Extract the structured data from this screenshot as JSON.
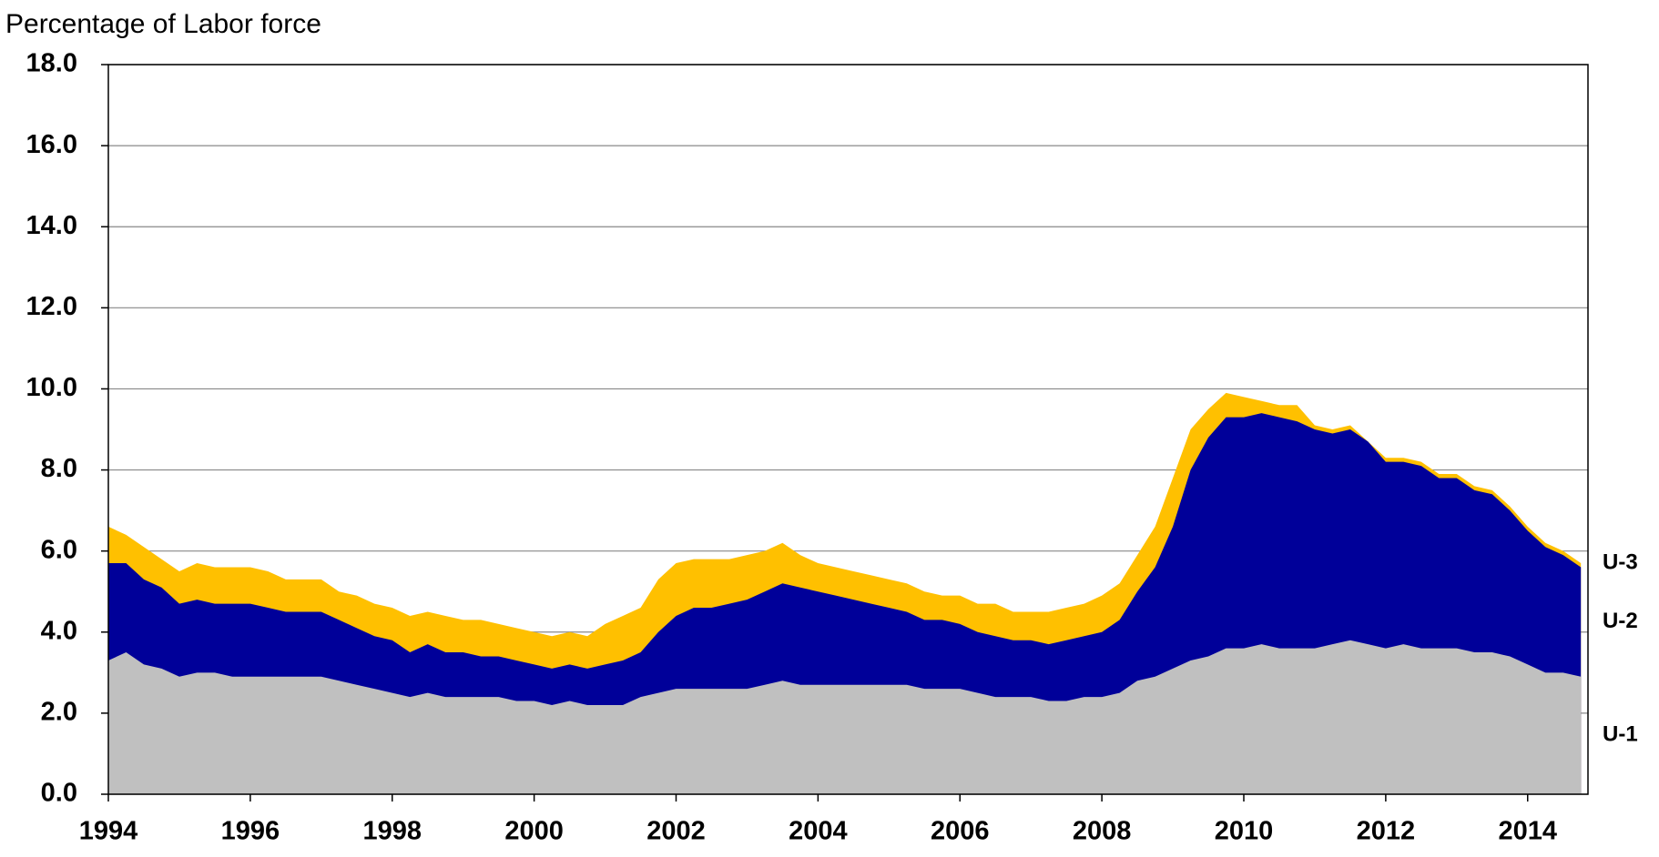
{
  "chart_data": {
    "type": "area",
    "ylabel": "Percentage of Labor force",
    "x": [
      1994,
      1994.25,
      1994.5,
      1994.75,
      1995,
      1995.25,
      1995.5,
      1995.75,
      1996,
      1996.25,
      1996.5,
      1996.75,
      1997,
      1997.25,
      1997.5,
      1997.75,
      1998,
      1998.25,
      1998.5,
      1998.75,
      1999,
      1999.25,
      1999.5,
      1999.75,
      2000,
      2000.25,
      2000.5,
      2000.75,
      2001,
      2001.25,
      2001.5,
      2001.75,
      2002,
      2002.25,
      2002.5,
      2002.75,
      2003,
      2003.25,
      2003.5,
      2003.75,
      2004,
      2004.25,
      2004.5,
      2004.75,
      2005,
      2005.25,
      2005.5,
      2005.75,
      2006,
      2006.25,
      2006.5,
      2006.75,
      2007,
      2007.25,
      2007.5,
      2007.75,
      2008,
      2008.25,
      2008.5,
      2008.75,
      2009,
      2009.25,
      2009.5,
      2009.75,
      2010,
      2010.25,
      2010.5,
      2010.75,
      2011,
      2011.25,
      2011.5,
      2011.75,
      2012,
      2012.25,
      2012.5,
      2012.75,
      2013,
      2013.25,
      2013.5,
      2013.75,
      2014,
      2014.25,
      2014.5,
      2014.75
    ],
    "series": [
      {
        "name": "U-3",
        "color": "#FFC000",
        "values": [
          6.6,
          6.4,
          6.1,
          5.8,
          5.5,
          5.7,
          5.6,
          5.6,
          5.6,
          5.5,
          5.3,
          5.3,
          5.3,
          5.0,
          4.9,
          4.7,
          4.6,
          4.4,
          4.5,
          4.4,
          4.3,
          4.3,
          4.2,
          4.1,
          4.0,
          3.9,
          4.0,
          3.9,
          4.2,
          4.4,
          4.6,
          5.3,
          5.7,
          5.8,
          5.8,
          5.8,
          5.9,
          6.0,
          6.2,
          5.9,
          5.7,
          5.6,
          5.5,
          5.4,
          5.3,
          5.2,
          5.0,
          4.9,
          4.9,
          4.7,
          4.7,
          4.5,
          4.5,
          4.5,
          4.6,
          4.7,
          4.9,
          5.2,
          5.9,
          6.6,
          7.8,
          9.0,
          9.5,
          9.9,
          9.8,
          9.7,
          9.6,
          9.6,
          9.1,
          9.0,
          9.1,
          8.7,
          8.3,
          8.3,
          8.2,
          7.9,
          7.9,
          7.6,
          7.5,
          7.1,
          6.6,
          6.2,
          6.0,
          5.7
        ]
      },
      {
        "name": "U-2",
        "color": "#000099",
        "values": [
          5.7,
          5.7,
          5.3,
          5.1,
          4.7,
          4.8,
          4.7,
          4.7,
          4.7,
          4.6,
          4.5,
          4.5,
          4.5,
          4.3,
          4.1,
          3.9,
          3.8,
          3.5,
          3.7,
          3.5,
          3.5,
          3.4,
          3.4,
          3.3,
          3.2,
          3.1,
          3.2,
          3.1,
          3.2,
          3.3,
          3.5,
          4.0,
          4.4,
          4.6,
          4.6,
          4.7,
          4.8,
          5.0,
          5.2,
          5.1,
          5.0,
          4.9,
          4.8,
          4.7,
          4.6,
          4.5,
          4.3,
          4.3,
          4.2,
          4.0,
          3.9,
          3.8,
          3.8,
          3.7,
          3.8,
          3.9,
          4.0,
          4.3,
          5.0,
          5.6,
          6.6,
          8.0,
          8.8,
          9.3,
          9.3,
          9.4,
          9.3,
          9.2,
          9.0,
          8.9,
          9.0,
          8.7,
          8.2,
          8.2,
          8.1,
          7.8,
          7.8,
          7.5,
          7.4,
          7.0,
          6.5,
          6.1,
          5.9,
          5.6
        ]
      },
      {
        "name": "U-1",
        "color": "#C0C0C0",
        "values": [
          3.3,
          3.5,
          3.2,
          3.1,
          2.9,
          3.0,
          3.0,
          2.9,
          2.9,
          2.9,
          2.9,
          2.9,
          2.9,
          2.8,
          2.7,
          2.6,
          2.5,
          2.4,
          2.5,
          2.4,
          2.4,
          2.4,
          2.4,
          2.3,
          2.3,
          2.2,
          2.3,
          2.2,
          2.2,
          2.2,
          2.4,
          2.5,
          2.6,
          2.6,
          2.6,
          2.6,
          2.6,
          2.7,
          2.8,
          2.7,
          2.7,
          2.7,
          2.7,
          2.7,
          2.7,
          2.7,
          2.6,
          2.6,
          2.6,
          2.5,
          2.4,
          2.4,
          2.4,
          2.3,
          2.3,
          2.4,
          2.4,
          2.5,
          2.8,
          2.9,
          3.1,
          3.3,
          3.4,
          3.6,
          3.6,
          3.7,
          3.6,
          3.6,
          3.6,
          3.7,
          3.8,
          3.7,
          3.6,
          3.7,
          3.6,
          3.6,
          3.6,
          3.5,
          3.5,
          3.4,
          3.2,
          3.0,
          3.0,
          2.9
        ]
      }
    ],
    "xlim": [
      1994,
      2014.85
    ],
    "xticks": [
      1994,
      1996,
      1998,
      2000,
      2002,
      2004,
      2006,
      2008,
      2010,
      2012,
      2014
    ],
    "ylim": [
      0,
      18
    ],
    "yticks": [
      {
        "value": 0,
        "label": "0.0"
      },
      {
        "value": 2,
        "label": "2.0"
      },
      {
        "value": 4,
        "label": "4.0"
      },
      {
        "value": 6,
        "label": "6.0"
      },
      {
        "value": 8,
        "label": "8.0"
      },
      {
        "value": 10,
        "label": "10.0"
      },
      {
        "value": 12,
        "label": "12.0"
      },
      {
        "value": 14,
        "label": "14.0"
      },
      {
        "value": 16,
        "label": "16.0"
      },
      {
        "value": 18,
        "label": "18.0"
      }
    ],
    "grid": true
  }
}
